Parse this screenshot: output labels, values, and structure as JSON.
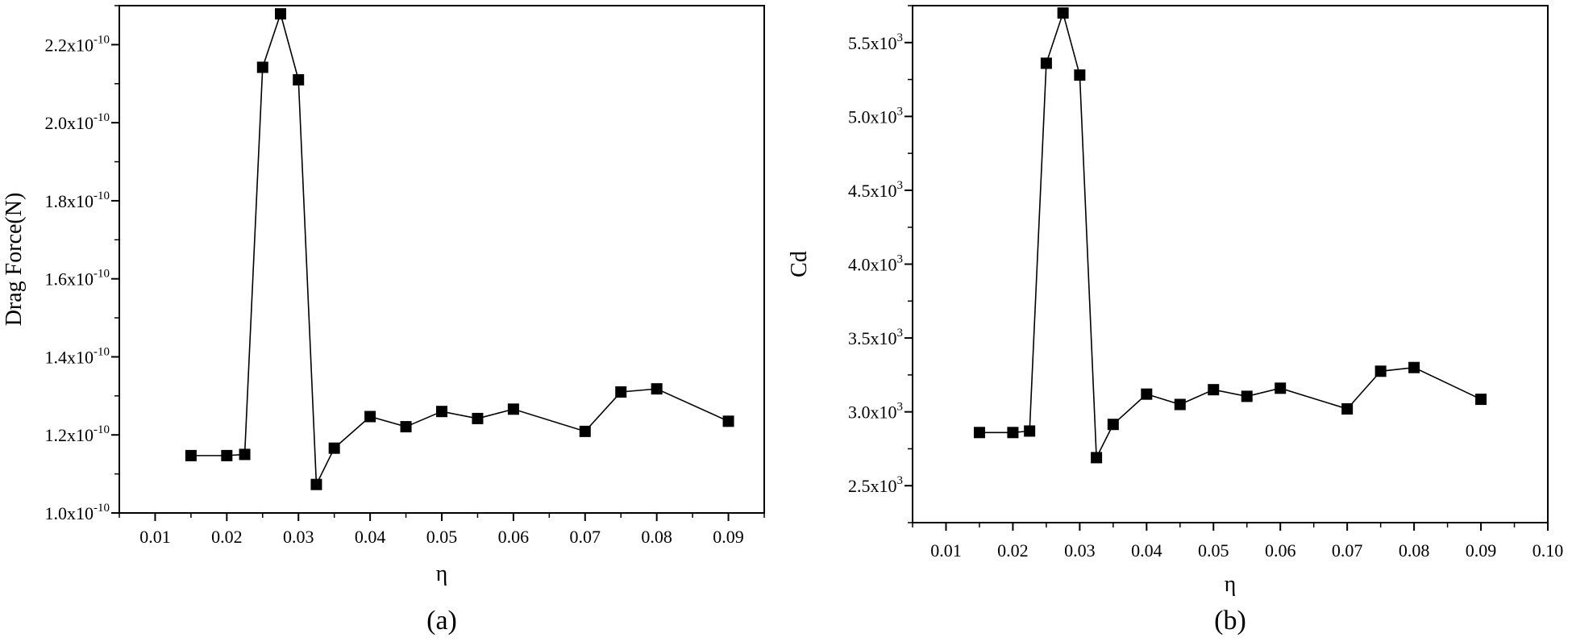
{
  "chart_data": [
    {
      "type": "line",
      "panel_label": "(a)",
      "xlabel": "η",
      "ylabel": "Drag Force(N)",
      "xlim": [
        0.005,
        0.095
      ],
      "ylim": [
        1e-10,
        2.3e-10
      ],
      "xticks": [
        "0.01",
        "0.02",
        "0.03",
        "0.04",
        "0.05",
        "0.06",
        "0.07",
        "0.08",
        "0.09"
      ],
      "yticks": [
        {
          "value": 1e-10,
          "mantissa": "1.0x10",
          "exp": "-10"
        },
        {
          "value": 1.2e-10,
          "mantissa": "1.2x10",
          "exp": "-10"
        },
        {
          "value": 1.4e-10,
          "mantissa": "1.4x10",
          "exp": "-10"
        },
        {
          "value": 1.6e-10,
          "mantissa": "1.6x10",
          "exp": "-10"
        },
        {
          "value": 1.8e-10,
          "mantissa": "1.8x10",
          "exp": "-10"
        },
        {
          "value": 2e-10,
          "mantissa": "2.0x10",
          "exp": "-10"
        },
        {
          "value": 2.2e-10,
          "mantissa": "2.2x10",
          "exp": "-10"
        }
      ],
      "grid": false,
      "series": [
        {
          "marker": "square",
          "color": "#000000",
          "x": [
            0.015,
            0.02,
            0.0225,
            0.025,
            0.0275,
            0.03,
            0.0325,
            0.035,
            0.04,
            0.045,
            0.05,
            0.055,
            0.06,
            0.07,
            0.075,
            0.08,
            0.09
          ],
          "y": [
            1.147e-10,
            1.147e-10,
            1.15e-10,
            2.142e-10,
            2.279e-10,
            2.11e-10,
            1.073e-10,
            1.166e-10,
            1.247e-10,
            1.221e-10,
            1.26e-10,
            1.242e-10,
            1.266e-10,
            1.209e-10,
            1.31e-10,
            1.318e-10,
            1.235e-10
          ]
        }
      ]
    },
    {
      "type": "line",
      "panel_label": "(b)",
      "xlabel": "η",
      "ylabel": "Cd",
      "xlim": [
        0.005,
        0.1
      ],
      "ylim": [
        2250.0,
        5750.0
      ],
      "xticks": [
        "0.01",
        "0.02",
        "0.03",
        "0.04",
        "0.05",
        "0.06",
        "0.07",
        "0.08",
        "0.09",
        "0.10"
      ],
      "yticks": [
        {
          "value": 2500,
          "mantissa": "2.5x10",
          "exp": "3"
        },
        {
          "value": 3000,
          "mantissa": "3.0x10",
          "exp": "3"
        },
        {
          "value": 3500,
          "mantissa": "3.5x10",
          "exp": "3"
        },
        {
          "value": 4000,
          "mantissa": "4.0x10",
          "exp": "3"
        },
        {
          "value": 4500,
          "mantissa": "4.5x10",
          "exp": "3"
        },
        {
          "value": 5000,
          "mantissa": "5.0x10",
          "exp": "3"
        },
        {
          "value": 5500,
          "mantissa": "5.5x10",
          "exp": "3"
        }
      ],
      "grid": false,
      "series": [
        {
          "marker": "square",
          "color": "#000000",
          "x": [
            0.015,
            0.02,
            0.0225,
            0.025,
            0.0275,
            0.03,
            0.0325,
            0.035,
            0.04,
            0.045,
            0.05,
            0.055,
            0.06,
            0.07,
            0.075,
            0.08,
            0.09
          ],
          "y": [
            2860,
            2860,
            2870,
            5360,
            5700,
            5280,
            2690,
            2915,
            3120,
            3050,
            3150,
            3105,
            3160,
            3020,
            3275,
            3300,
            3085
          ]
        }
      ]
    }
  ]
}
